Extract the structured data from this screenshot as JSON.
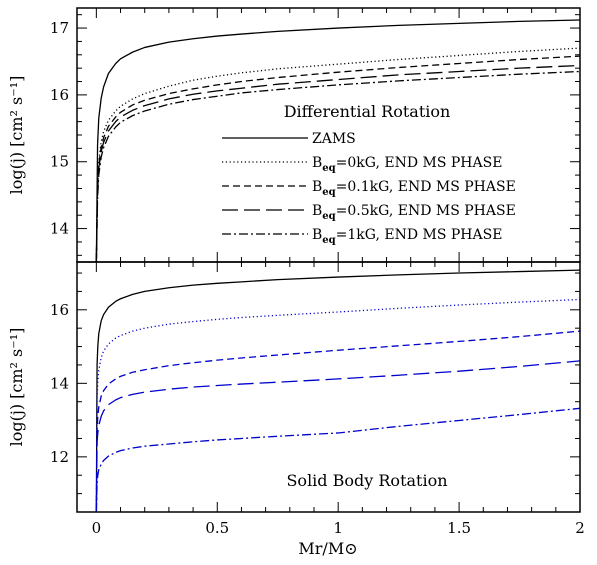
{
  "chart_data": [
    {
      "type": "line",
      "title": "Differential Rotation",
      "ylabel": "log(j) [cm² s⁻¹]",
      "xlim": [
        -0.08,
        2.0
      ],
      "ylim": [
        13.5,
        17.3
      ],
      "yticks": [
        14,
        15,
        16,
        17
      ],
      "x_minor_step": 0.1,
      "y_minor_step": 0.2,
      "legend_placement": "lower-right",
      "series": [
        {
          "name": "ZAMS",
          "color": "#000000",
          "dash": "solid",
          "x": [
            0,
            0.005,
            0.01,
            0.02,
            0.03,
            0.05,
            0.08,
            0.1,
            0.15,
            0.2,
            0.3,
            0.4,
            0.5,
            0.6,
            0.75,
            1.0,
            1.25,
            1.5,
            1.75,
            2.0
          ],
          "y": [
            13.5,
            15.25,
            15.65,
            15.95,
            16.12,
            16.32,
            16.47,
            16.54,
            16.64,
            16.71,
            16.79,
            16.84,
            16.88,
            16.91,
            16.95,
            17.0,
            17.04,
            17.07,
            17.1,
            17.12
          ]
        },
        {
          "name": "Beq=0kG, END MS PHASE",
          "color": "#000000",
          "dash": "dotted",
          "x": [
            0,
            0.005,
            0.01,
            0.02,
            0.03,
            0.05,
            0.08,
            0.1,
            0.15,
            0.2,
            0.3,
            0.4,
            0.5,
            0.6,
            0.75,
            1.0,
            1.25,
            1.5,
            1.75,
            2.0
          ],
          "y": [
            13.5,
            14.75,
            15.0,
            15.3,
            15.45,
            15.62,
            15.76,
            15.83,
            15.94,
            16.02,
            16.13,
            16.22,
            16.28,
            16.33,
            16.39,
            16.46,
            16.53,
            16.59,
            16.65,
            16.7
          ]
        },
        {
          "name": "Beq=0.1kG, END MS PHASE",
          "color": "#000000",
          "dash": "short-dash",
          "x": [
            0,
            0.005,
            0.01,
            0.02,
            0.03,
            0.05,
            0.08,
            0.1,
            0.15,
            0.2,
            0.3,
            0.4,
            0.5,
            0.6,
            0.75,
            1.0,
            1.25,
            1.5,
            1.75,
            2.0
          ],
          "y": [
            13.5,
            14.6,
            14.95,
            15.22,
            15.36,
            15.53,
            15.67,
            15.74,
            15.85,
            15.92,
            16.02,
            16.09,
            16.15,
            16.2,
            16.26,
            16.34,
            16.41,
            16.47,
            16.53,
            16.58
          ]
        },
        {
          "name": "Beq=0.5kG, END MS PHASE",
          "color": "#000000",
          "dash": "long-dash",
          "x": [
            0,
            0.005,
            0.01,
            0.02,
            0.03,
            0.05,
            0.08,
            0.1,
            0.15,
            0.2,
            0.3,
            0.4,
            0.5,
            0.6,
            0.75,
            1.0,
            1.25,
            1.5,
            1.75,
            2.0
          ],
          "y": [
            13.5,
            14.55,
            14.9,
            15.15,
            15.29,
            15.46,
            15.6,
            15.67,
            15.77,
            15.84,
            15.94,
            16.01,
            16.06,
            16.1,
            16.16,
            16.23,
            16.3,
            16.35,
            16.4,
            16.44
          ]
        },
        {
          "name": "Beq=1kG, END MS PHASE",
          "color": "#000000",
          "dash": "dash-dot",
          "x": [
            0,
            0.005,
            0.01,
            0.02,
            0.03,
            0.05,
            0.08,
            0.1,
            0.15,
            0.2,
            0.3,
            0.4,
            0.5,
            0.6,
            0.75,
            1.0,
            1.25,
            1.5,
            1.75,
            2.0
          ],
          "y": [
            13.5,
            14.45,
            14.8,
            15.07,
            15.21,
            15.38,
            15.52,
            15.59,
            15.69,
            15.76,
            15.86,
            15.93,
            15.98,
            16.03,
            16.08,
            16.15,
            16.21,
            16.26,
            16.31,
            16.35
          ]
        }
      ]
    },
    {
      "type": "line",
      "title": "Solid Body Rotation",
      "xlabel": "Mr/M⊙",
      "ylabel": "log(j) [cm² s⁻¹]",
      "xlim": [
        -0.08,
        2.0
      ],
      "ylim": [
        10.5,
        17.3
      ],
      "xticks": [
        0,
        0.5,
        1,
        1.5,
        2
      ],
      "xtick_labels": [
        "0",
        "0.5",
        "1",
        "1.5",
        "2"
      ],
      "yticks": [
        12,
        14,
        16
      ],
      "x_minor_step": 0.1,
      "y_minor_step": 0.5,
      "series": [
        {
          "color": "#000000",
          "dash": "solid",
          "x": [
            0,
            0.003,
            0.006,
            0.01,
            0.02,
            0.03,
            0.05,
            0.08,
            0.1,
            0.15,
            0.2,
            0.3,
            0.4,
            0.5,
            0.6,
            0.75,
            1.0,
            1.25,
            1.5,
            1.75,
            2.0
          ],
          "y": [
            10.5,
            14.5,
            15.0,
            15.35,
            15.7,
            15.87,
            16.07,
            16.23,
            16.3,
            16.42,
            16.5,
            16.6,
            16.67,
            16.72,
            16.76,
            16.82,
            16.89,
            16.95,
            17.0,
            17.04,
            17.08
          ]
        },
        {
          "color": "#0000cc",
          "dash": "dotted",
          "x": [
            0,
            0.003,
            0.006,
            0.01,
            0.02,
            0.03,
            0.05,
            0.08,
            0.1,
            0.15,
            0.2,
            0.3,
            0.4,
            0.5,
            0.6,
            0.75,
            1.0,
            1.25,
            1.5,
            1.75,
            2.0
          ],
          "y": [
            10.5,
            13.6,
            14.05,
            14.35,
            14.7,
            14.88,
            15.07,
            15.23,
            15.3,
            15.42,
            15.5,
            15.61,
            15.68,
            15.74,
            15.79,
            15.85,
            15.94,
            16.04,
            16.13,
            16.21,
            16.28
          ]
        },
        {
          "color": "#0000cc",
          "dash": "short-dash",
          "x": [
            0,
            0.003,
            0.006,
            0.01,
            0.02,
            0.03,
            0.05,
            0.08,
            0.1,
            0.15,
            0.2,
            0.3,
            0.4,
            0.5,
            0.6,
            0.75,
            1.0,
            1.25,
            1.5,
            1.75,
            2.0
          ],
          "y": [
            10.5,
            12.7,
            13.1,
            13.35,
            13.65,
            13.8,
            13.98,
            14.12,
            14.19,
            14.3,
            14.37,
            14.48,
            14.56,
            14.63,
            14.69,
            14.77,
            14.9,
            15.02,
            15.14,
            15.27,
            15.42
          ]
        },
        {
          "color": "#0000cc",
          "dash": "long-dash",
          "x": [
            0,
            0.003,
            0.006,
            0.01,
            0.02,
            0.03,
            0.05,
            0.08,
            0.1,
            0.15,
            0.2,
            0.3,
            0.4,
            0.5,
            0.6,
            0.75,
            1.0,
            1.25,
            1.5,
            1.75,
            2.0
          ],
          "y": [
            10.5,
            12.4,
            12.65,
            12.85,
            13.1,
            13.25,
            13.42,
            13.55,
            13.61,
            13.7,
            13.76,
            13.84,
            13.9,
            13.94,
            13.98,
            14.03,
            14.12,
            14.22,
            14.33,
            14.46,
            14.61
          ]
        },
        {
          "color": "#0000cc",
          "dash": "dash-dot",
          "x": [
            0,
            0.003,
            0.006,
            0.01,
            0.02,
            0.03,
            0.05,
            0.08,
            0.1,
            0.15,
            0.2,
            0.3,
            0.4,
            0.5,
            0.6,
            0.75,
            1.0,
            1.25,
            1.5,
            1.75,
            2.0
          ],
          "y": [
            10.5,
            11.3,
            11.5,
            11.65,
            11.8,
            11.9,
            12.02,
            12.12,
            12.17,
            12.24,
            12.29,
            12.35,
            12.41,
            12.46,
            12.5,
            12.56,
            12.65,
            12.83,
            12.99,
            13.15,
            13.32
          ]
        }
      ]
    }
  ]
}
